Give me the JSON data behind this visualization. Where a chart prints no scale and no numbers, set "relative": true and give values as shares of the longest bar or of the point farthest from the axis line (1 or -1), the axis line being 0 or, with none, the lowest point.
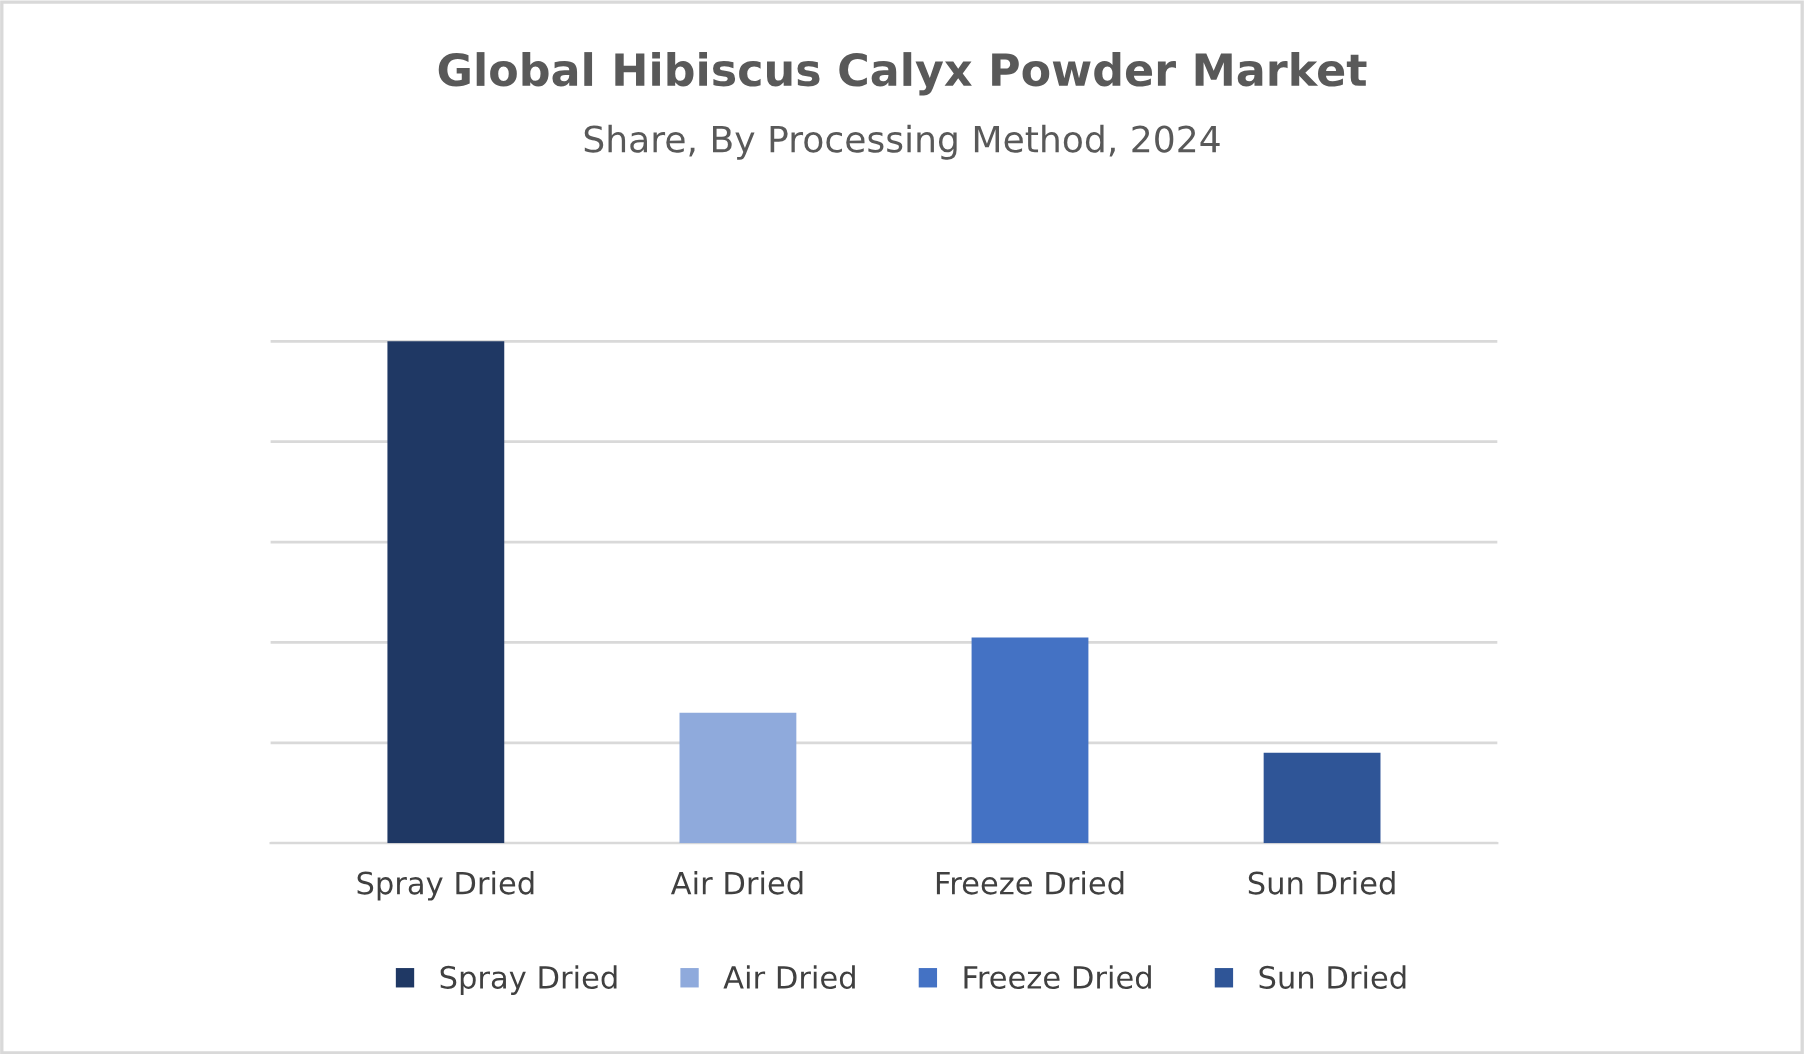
{
  "chart_data": {
    "type": "bar",
    "title": "Global Hibiscus Calyx Powder Market",
    "subtitle": "Share, By Processing Method, 2024",
    "categories": [
      "Spray Dried",
      "Air Dried",
      "Freeze Dried",
      "Sun Dried"
    ],
    "series": [
      {
        "name": "Spray Dried",
        "color": "#1f3864",
        "values": [
          1,
          null,
          null,
          null
        ]
      },
      {
        "name": "Air Dried",
        "color": "#8faadc",
        "values": [
          null,
          0.26,
          null,
          null
        ]
      },
      {
        "name": "Freeze Dried",
        "color": "#4472c4",
        "values": [
          null,
          null,
          0.41,
          null
        ]
      },
      {
        "name": "Sun Dried",
        "color": "#2f5597",
        "values": [
          null,
          null,
          null,
          0.18
        ]
      }
    ],
    "relative": true,
    "grid": "y",
    "legend": "bottom"
  }
}
